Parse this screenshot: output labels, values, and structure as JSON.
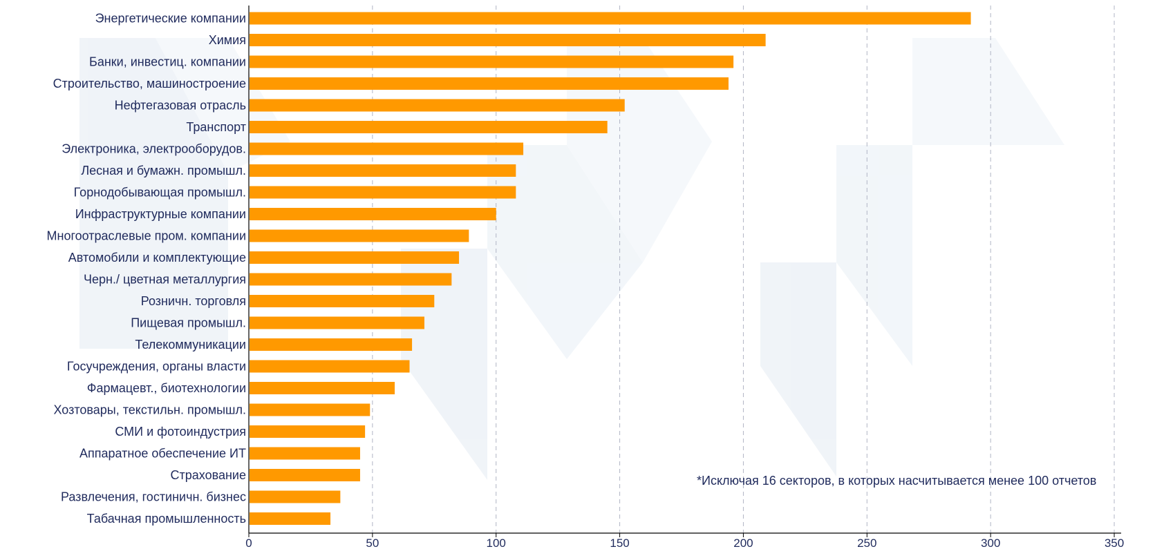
{
  "chart_data": {
    "type": "bar",
    "orientation": "horizontal",
    "categories": [
      "Энергетические компании",
      "Химия",
      "Банки, инвестиц. компании",
      "Строительство, машиностроение",
      "Нефтегазовая отрасль",
      "Транспорт",
      "Электроника, электрооборудов.",
      "Лесная и бумажн. промышл.",
      "Горнодобывающая промышл.",
      "Инфраструктурные компании",
      "Многоотраслевые пром. компании",
      "Автомобили и комплектующие",
      "Черн./ цветная металлургия",
      "Розничн. торговля",
      "Пищевая промышл.",
      "Телекоммуникации",
      "Госучреждения, органы власти",
      "Фармацевт., биотехнологии",
      "Хозтовары, текстильн. промышл.",
      "СМИ и фотоиндустрия",
      "Аппаратное обеспечение ИТ",
      "Страхование",
      "Развлечения, гостиничн. бизнес",
      "Табачная промышленность"
    ],
    "values": [
      292,
      209,
      196,
      194,
      152,
      145,
      111,
      108,
      108,
      100,
      89,
      85,
      82,
      75,
      71,
      66,
      65,
      59,
      49,
      47,
      45,
      45,
      37,
      33
    ],
    "xlim": [
      0,
      350
    ],
    "xticks": [
      0,
      50,
      100,
      150,
      200,
      250,
      300,
      350
    ],
    "grid": true,
    "bar_color": "#ff9900",
    "title": "",
    "xlabel": "",
    "ylabel": ""
  },
  "footnote": {
    "mark": "*",
    "text": "Исключая 16 секторов, в которых насчитывается менее 100 отчетов"
  }
}
